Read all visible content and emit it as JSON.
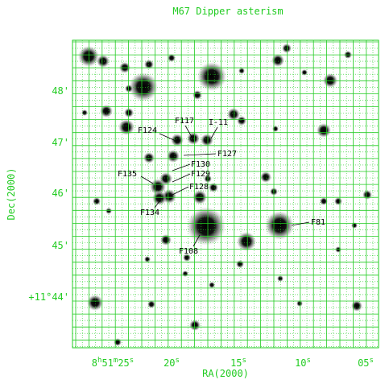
{
  "title": "M67 Dipper asterism",
  "x_axis_label": "RA(2000)",
  "y_axis_label": "Dec(2000)",
  "dec_ticks": [
    "48'",
    "47'",
    "46'",
    "45'",
    "+11°44'"
  ],
  "ra_ticks": [
    [
      "8",
      "h",
      "51",
      "m",
      "25",
      "s"
    ],
    [
      "20",
      "s"
    ],
    [
      "15",
      "s"
    ],
    [
      "10",
      "s"
    ],
    [
      "05",
      "s"
    ]
  ],
  "stars": [
    "F117",
    "I-11",
    "F124",
    "F127",
    "F130",
    "F135",
    "F129",
    "F128",
    "F134",
    "F81",
    "F108"
  ]
}
